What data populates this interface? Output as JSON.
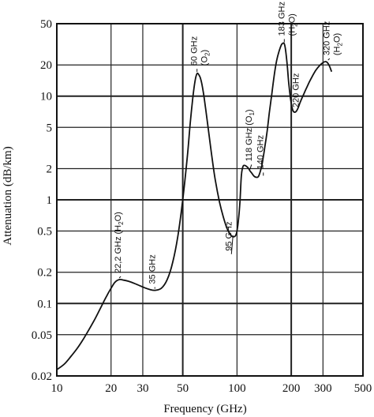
{
  "chart_data": {
    "type": "line",
    "title": "",
    "xlabel": "Frequency (GHz)",
    "ylabel": "Attenuation (dB/km)",
    "x_scale": "log",
    "y_scale": "log",
    "xlim": [
      10,
      500
    ],
    "ylim": [
      0.02,
      50
    ],
    "grid": true,
    "legend": "none",
    "x_ticks": [
      10,
      20,
      30,
      50,
      100,
      200,
      300,
      500
    ],
    "x_tick_labels": [
      "10",
      "20",
      "30",
      "50",
      "100",
      "200",
      "300",
      "500"
    ],
    "y_ticks": [
      0.02,
      0.05,
      0.1,
      0.2,
      0.5,
      1,
      2,
      5,
      10,
      20,
      50
    ],
    "y_tick_labels": [
      "0.02",
      "0.05",
      "0.1",
      "0.2",
      "0.5",
      "1",
      "2",
      "5",
      "10",
      "20",
      "50"
    ],
    "series": [
      {
        "x": [
          10,
          11,
          12,
          13,
          14,
          15,
          16,
          17,
          18,
          19,
          20,
          21,
          22.2,
          23.5,
          25,
          27,
          29,
          31,
          33,
          35,
          38,
          41,
          44,
          47,
          50,
          53,
          55,
          57,
          58.5,
          60,
          61.5,
          63,
          65,
          67,
          70,
          73,
          76,
          80,
          84,
          88,
          92,
          95,
          98,
          100,
          102,
          104,
          105,
          106,
          108,
          110,
          113,
          116,
          118,
          121,
          124,
          128,
          132,
          137,
          140,
          143,
          147,
          151,
          156,
          161,
          166,
          171,
          176,
          180,
          183,
          186,
          190,
          194,
          199,
          204,
          209,
          214,
          219,
          224,
          232,
          241,
          251,
          262,
          274,
          288,
          302,
          312,
          320,
          328,
          335
        ],
        "y": [
          0.023,
          0.026,
          0.031,
          0.037,
          0.045,
          0.055,
          0.067,
          0.082,
          0.1,
          0.12,
          0.14,
          0.16,
          0.17,
          0.168,
          0.164,
          0.156,
          0.148,
          0.141,
          0.136,
          0.134,
          0.14,
          0.17,
          0.25,
          0.45,
          1.0,
          2.6,
          5.5,
          10,
          14,
          16.5,
          16,
          14.5,
          11,
          7.5,
          4.2,
          2.4,
          1.5,
          0.95,
          0.68,
          0.53,
          0.46,
          0.44,
          0.45,
          0.5,
          0.65,
          1.0,
          1.4,
          1.8,
          2.1,
          2.15,
          2.1,
          2.0,
          1.9,
          1.8,
          1.7,
          1.65,
          1.7,
          2.1,
          2.6,
          3.3,
          4.6,
          6.8,
          10.5,
          16,
          22,
          27,
          31,
          32.5,
          32,
          28,
          20,
          13,
          9,
          7.3,
          7.0,
          7.2,
          7.8,
          8.7,
          10,
          11.6,
          13.5,
          15.6,
          17.8,
          19.8,
          21.2,
          21.5,
          20.7,
          19,
          17.2
        ]
      }
    ],
    "annotations": [
      {
        "text": "22,2 GHz (H",
        "sub": "2",
        "tail": "O)",
        "x": 22.2,
        "y": 0.17
      },
      {
        "text": "35 GHz",
        "x": 35,
        "y": 0.134
      },
      {
        "text": "60 GHz",
        "sub2": "(O",
        "subnum": "2",
        "tail": ")",
        "x": 60,
        "y": 16.5
      },
      {
        "text": "95 GHz",
        "x": 95,
        "y": 0.44
      },
      {
        "text": "118 GHz (O",
        "sub": "1",
        "tail": ")",
        "x": 118,
        "y": 1.9
      },
      {
        "text": "140 GHz",
        "x": 140,
        "y": 1.65
      },
      {
        "text": "183 GHz",
        "sub2": "(H",
        "subnum": "2",
        "tail": "O)",
        "x": 183,
        "y": 32
      },
      {
        "text": "220 GHz",
        "x": 220,
        "y": 7.0
      },
      {
        "text": "320 GHz",
        "sub2": "(H",
        "subnum": "2",
        "tail": "O)",
        "x": 320,
        "y": 21.5
      }
    ]
  }
}
